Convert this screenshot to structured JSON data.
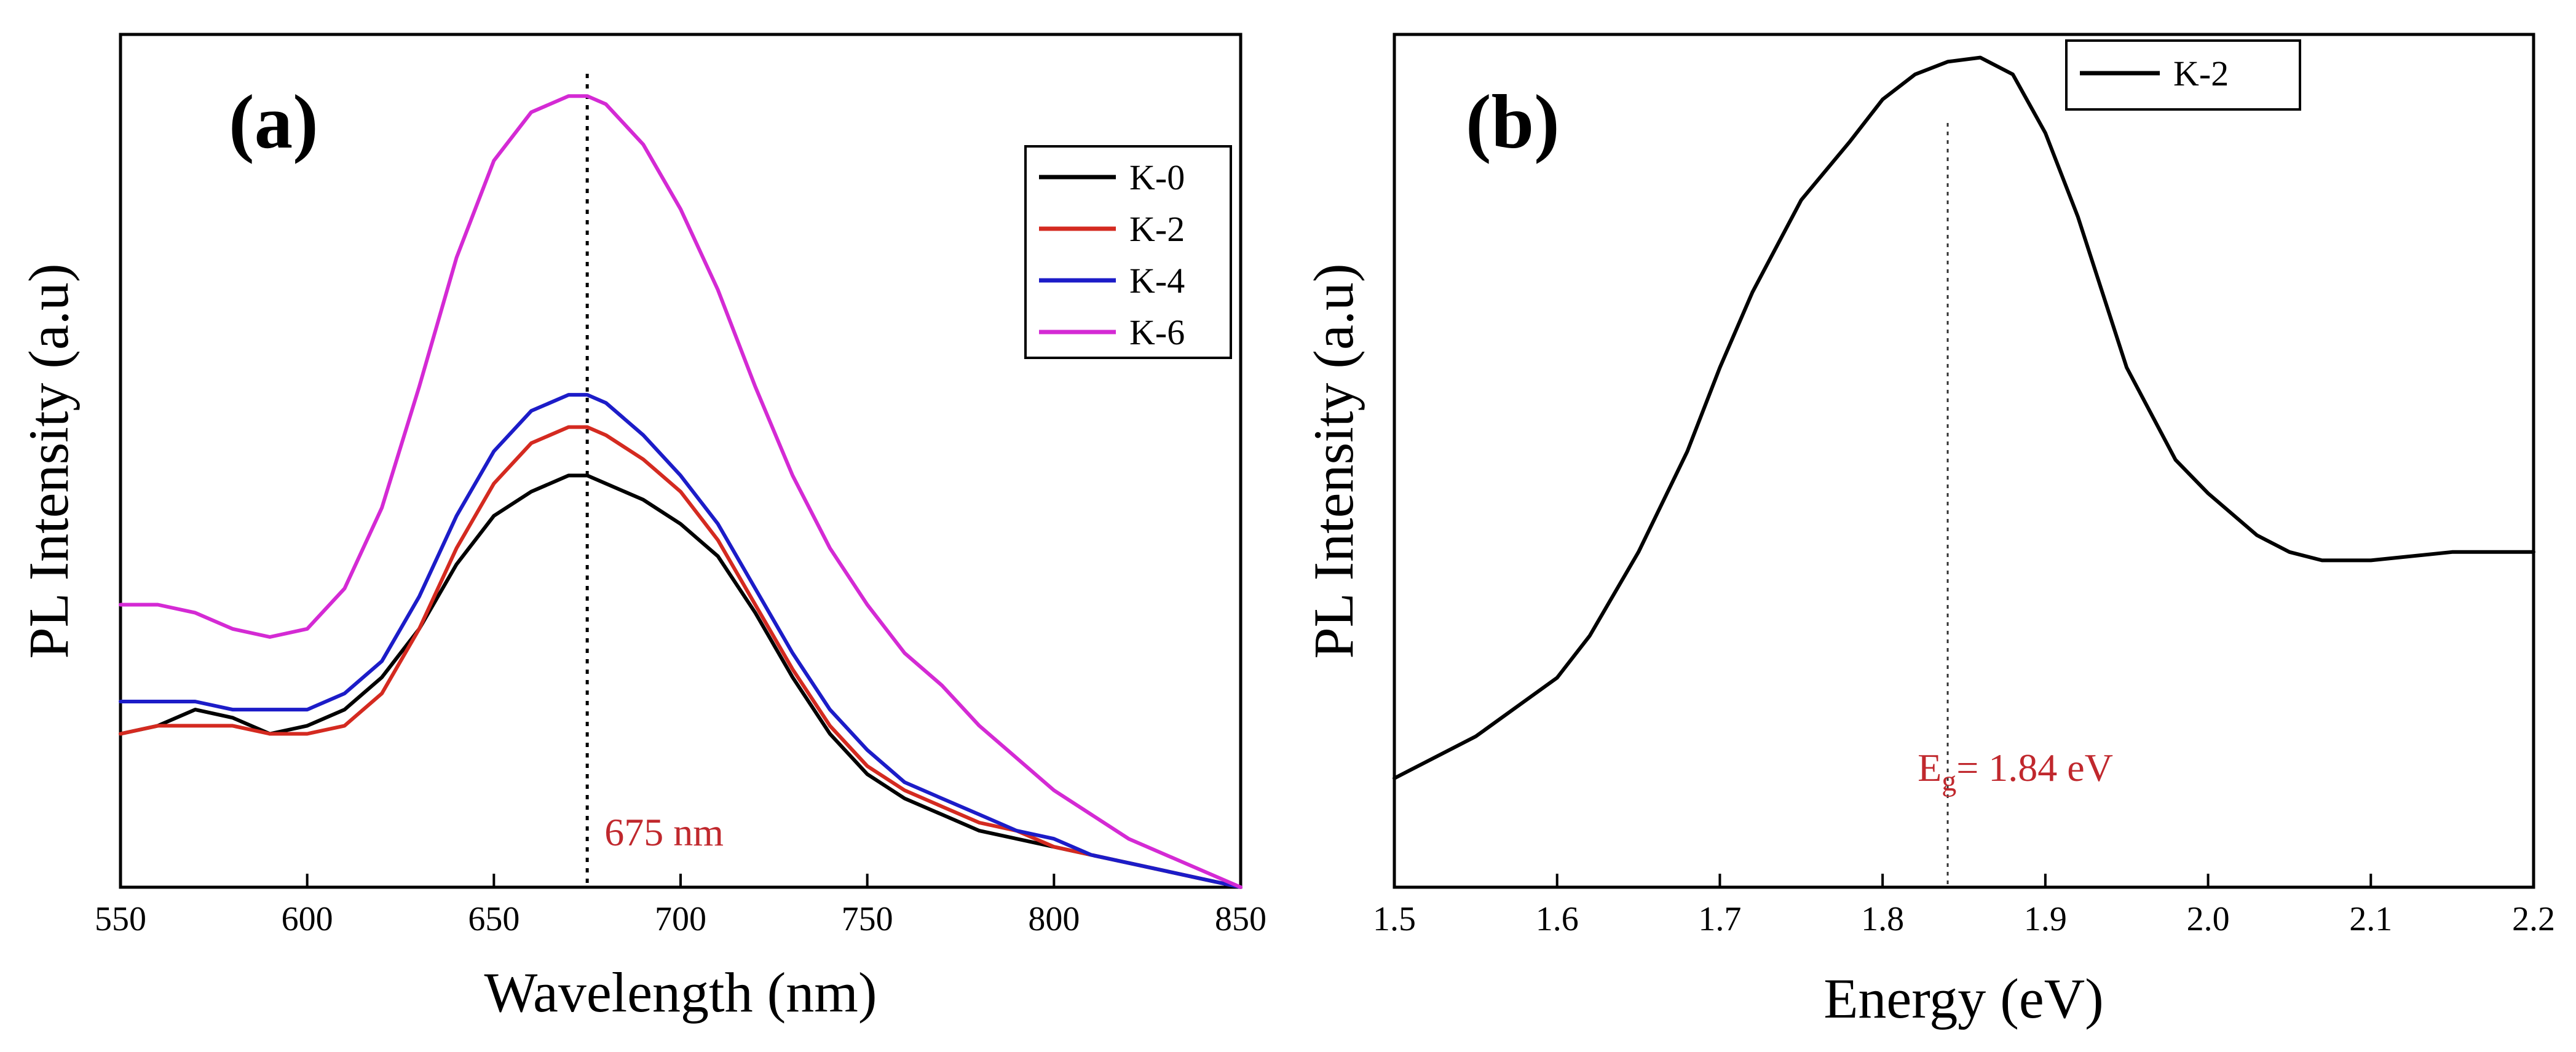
{
  "chart_data": [
    {
      "type": "line",
      "panel_label": "(a)",
      "xlabel": "Wavelength (nm)",
      "ylabel": "PL Intensity (a.u)",
      "xlim": [
        550,
        850
      ],
      "ylim": [
        0,
        1.0
      ],
      "xticks": [
        550,
        600,
        650,
        700,
        750,
        800,
        850
      ],
      "legend_position": "top-right",
      "x": [
        550,
        560,
        570,
        580,
        590,
        600,
        610,
        620,
        630,
        640,
        650,
        660,
        670,
        675,
        680,
        690,
        700,
        710,
        720,
        730,
        740,
        750,
        760,
        770,
        780,
        790,
        800,
        810,
        820,
        830,
        840,
        850
      ],
      "series": [
        {
          "name": "K-0",
          "color": "#000000",
          "values": [
            0.19,
            0.2,
            0.22,
            0.21,
            0.19,
            0.2,
            0.22,
            0.26,
            0.32,
            0.4,
            0.46,
            0.49,
            0.51,
            0.51,
            0.5,
            0.48,
            0.45,
            0.41,
            0.34,
            0.26,
            0.19,
            0.14,
            0.11,
            0.09,
            0.07,
            0.06,
            0.05,
            0.04,
            0.03,
            0.02,
            0.01,
            0.0
          ]
        },
        {
          "name": "K-2",
          "color": "#d42a20",
          "values": [
            0.19,
            0.2,
            0.2,
            0.2,
            0.19,
            0.19,
            0.2,
            0.24,
            0.32,
            0.42,
            0.5,
            0.55,
            0.57,
            0.57,
            0.56,
            0.53,
            0.49,
            0.43,
            0.35,
            0.27,
            0.2,
            0.15,
            0.12,
            0.1,
            0.08,
            0.07,
            0.05,
            0.04,
            0.03,
            0.02,
            0.01,
            0.0
          ]
        },
        {
          "name": "K-4",
          "color": "#1c1cc8",
          "values": [
            0.23,
            0.23,
            0.23,
            0.22,
            0.22,
            0.22,
            0.24,
            0.28,
            0.36,
            0.46,
            0.54,
            0.59,
            0.61,
            0.61,
            0.6,
            0.56,
            0.51,
            0.45,
            0.37,
            0.29,
            0.22,
            0.17,
            0.13,
            0.11,
            0.09,
            0.07,
            0.06,
            0.04,
            0.03,
            0.02,
            0.01,
            0.0
          ]
        },
        {
          "name": "K-6",
          "color": "#d42ad4",
          "values": [
            0.35,
            0.35,
            0.34,
            0.32,
            0.31,
            0.32,
            0.37,
            0.47,
            0.62,
            0.78,
            0.9,
            0.96,
            0.98,
            0.98,
            0.97,
            0.92,
            0.84,
            0.74,
            0.62,
            0.51,
            0.42,
            0.35,
            0.29,
            0.25,
            0.2,
            0.16,
            0.12,
            0.09,
            0.06,
            0.04,
            0.02,
            0.0
          ]
        }
      ],
      "annotations": [
        {
          "text": "675 nm",
          "x": 675
        }
      ]
    },
    {
      "type": "line",
      "panel_label": "(b)",
      "xlabel": "Energy (eV)",
      "ylabel": "PL Intensity (a.u)",
      "xlim": [
        1.5,
        2.2
      ],
      "ylim": [
        0,
        1.0
      ],
      "xticks": [
        "1.5",
        "1.6",
        "1.7",
        "1.8",
        "1.9",
        "2.0",
        "2.1",
        "2.2"
      ],
      "legend_position": "top-right",
      "x": [
        1.5,
        1.55,
        1.6,
        1.62,
        1.65,
        1.68,
        1.7,
        1.72,
        1.75,
        1.78,
        1.8,
        1.82,
        1.84,
        1.86,
        1.88,
        1.9,
        1.92,
        1.95,
        1.98,
        2.0,
        2.03,
        2.05,
        2.07,
        2.1,
        2.15,
        2.2
      ],
      "series": [
        {
          "name": "K-2",
          "color": "#000000",
          "values": [
            0.13,
            0.18,
            0.25,
            0.3,
            0.4,
            0.52,
            0.62,
            0.71,
            0.82,
            0.89,
            0.94,
            0.97,
            0.985,
            0.99,
            0.97,
            0.9,
            0.8,
            0.62,
            0.51,
            0.47,
            0.42,
            0.4,
            0.39,
            0.39,
            0.4,
            0.4
          ]
        }
      ],
      "annotations": [
        {
          "text": "E",
          "subscript": "g",
          "suffix": "= 1.84 eV",
          "x": 1.84
        }
      ]
    }
  ]
}
